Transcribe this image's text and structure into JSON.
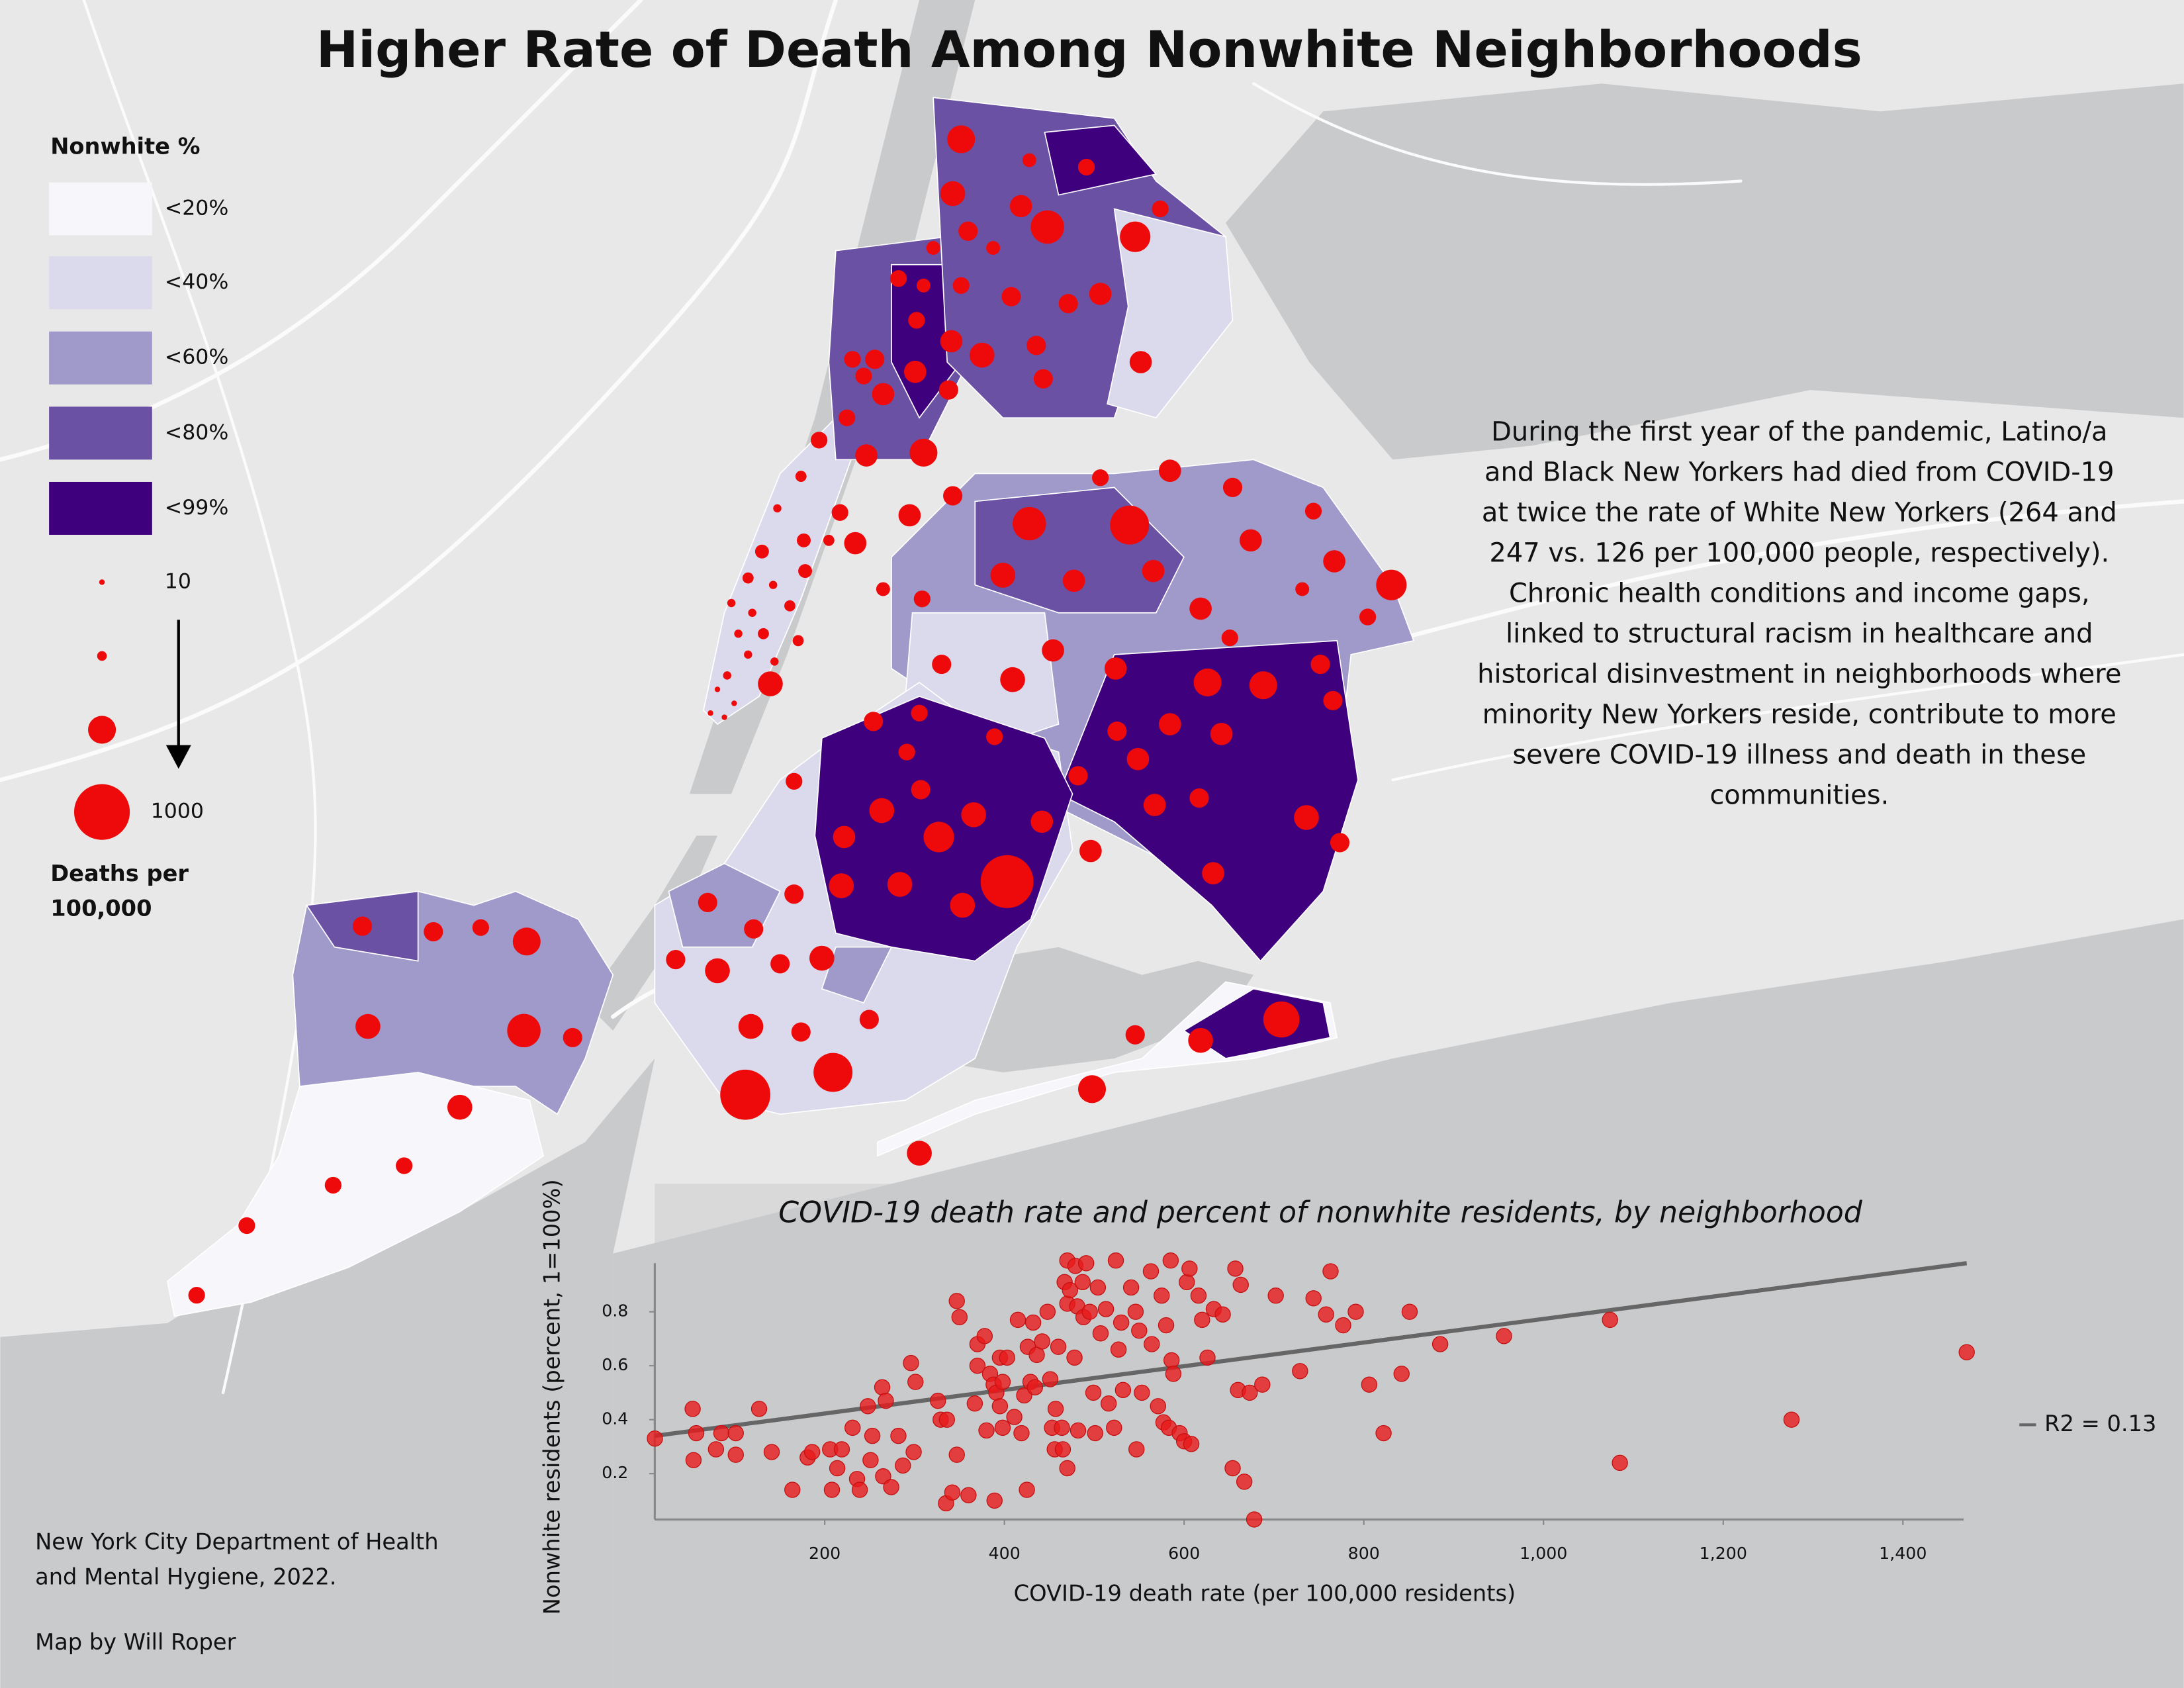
{
  "title": "Higher Rate of Death Among Nonwhite Neighborhoods",
  "legend": {
    "title": "Nonwhite %",
    "classes": [
      {
        "label": "<20%",
        "color": "#f7f6fb"
      },
      {
        "label": "<40%",
        "color": "#dbdaed"
      },
      {
        "label": "<60%",
        "color": "#9f9ac9"
      },
      {
        "label": "<80%",
        "color": "#6b51a4"
      },
      {
        "label": "<99%",
        "color": "#3e007c"
      }
    ],
    "size_values": [
      10,
      30,
      250,
      1000
    ],
    "size_labels": [
      "10",
      null,
      null,
      "1000"
    ],
    "size_title_lines": [
      "Deaths per",
      "100,000"
    ]
  },
  "map_bubbles": {
    "color": "#ee0a0a",
    "values": [
      250,
      62,
      90,
      200,
      160,
      360,
      300,
      90,
      120,
      62,
      62,
      90,
      62,
      90,
      120,
      120,
      160,
      90,
      160,
      200,
      120,
      90,
      120,
      160,
      90,
      160,
      120,
      120,
      160,
      90,
      90,
      250,
      160,
      120,
      90,
      160,
      120,
      90,
      360,
      490,
      160,
      160,
      200,
      160,
      160,
      160,
      160,
      300,
      62,
      90,
      160,
      62,
      90,
      120,
      160,
      200,
      160,
      90,
      250,
      250,
      120,
      200,
      120,
      90,
      90,
      120,
      160,
      160,
      120,
      90,
      90,
      200,
      200,
      120,
      160,
      120,
      160,
      160,
      120,
      200,
      120,
      160,
      300,
      900,
      160,
      200,
      200,
      200,
      160,
      120,
      120,
      120,
      200,
      120,
      200,
      120,
      200,
      120,
      120,
      490,
      810,
      250,
      200,
      120,
      200,
      420,
      120,
      120,
      90,
      250,
      200,
      360,
      120,
      200,
      90,
      90,
      90,
      90,
      40,
      22,
      62,
      40,
      90,
      62,
      62,
      40,
      22,
      40,
      22,
      22,
      40,
      22,
      40,
      22,
      22,
      22,
      10,
      10,
      10,
      10
    ]
  },
  "description": [
    "During the first year of the pandemic, Latino/a",
    "and Black New Yorkers had died from COVID-19",
    "at twice the rate of White New Yorkers (264 and",
    "247 vs. 126 per 100,000 people, respectively).",
    "Chronic health conditions and income gaps,",
    "linked to structural racism in healthcare and",
    "historical disinvestment in neighborhoods where",
    "minority New Yorkers reside, contribute to more",
    "severe COVID-19 illness and death in these",
    "communities."
  ],
  "source_lines": [
    "New York City Department of Health",
    "and Mental Hygiene, 2022."
  ],
  "credit": "Map by Will Roper",
  "chart_data": {
    "type": "scatter",
    "title": "COVID-19 death rate and percent of nonwhite residents, by neighborhood",
    "x_label": "COVID-19 death rate (per 100,000 residents)",
    "y_label": "Nonwhite residents (percent, 1=100%)",
    "color": "#e8191c",
    "x": [
      11,
      53,
      57,
      54,
      79,
      85,
      101,
      101,
      127,
      141,
      164,
      181,
      186,
      206,
      208,
      214,
      219,
      231,
      236,
      239,
      248,
      251,
      253,
      264,
      265,
      268,
      274,
      282,
      287,
      296,
      301,
      299,
      326,
      329,
      336,
      335,
      342,
      347,
      347,
      350,
      360,
      367,
      370,
      370,
      378,
      380,
      384,
      388,
      389,
      391,
      395,
      395,
      398,
      398,
      403,
      411,
      415,
      419,
      422,
      425,
      426,
      429,
      432,
      434,
      436,
      442,
      448,
      451,
      453,
      456,
      457,
      460,
      464,
      465,
      467,
      470,
      470,
      470,
      473,
      478,
      479,
      481,
      482,
      487,
      488,
      491,
      495,
      499,
      501,
      504,
      507,
      513,
      516,
      522,
      524,
      527,
      530,
      532,
      541,
      546,
      547,
      550,
      553,
      563,
      564,
      571,
      575,
      577,
      580,
      583,
      585,
      586,
      588,
      595,
      600,
      603,
      606,
      608,
      616,
      620,
      626,
      633,
      643,
      654,
      657,
      660,
      663,
      667,
      673,
      678,
      687,
      702,
      729,
      744,
      758,
      763,
      777,
      791,
      806,
      822,
      842,
      851,
      885,
      956,
      1074,
      1085,
      1276,
      1471
    ],
    "values": [
      0.33,
      0.44,
      0.35,
      0.25,
      0.29,
      0.35,
      0.35,
      0.27,
      0.44,
      0.28,
      0.14,
      0.26,
      0.28,
      0.29,
      0.14,
      0.22,
      0.29,
      0.37,
      0.18,
      0.14,
      0.45,
      0.25,
      0.34,
      0.52,
      0.19,
      0.47,
      0.15,
      0.34,
      0.23,
      0.61,
      0.54,
      0.28,
      0.47,
      0.4,
      0.4,
      0.09,
      0.13,
      0.84,
      0.27,
      0.78,
      0.12,
      0.46,
      0.68,
      0.6,
      0.71,
      0.36,
      0.57,
      0.53,
      0.1,
      0.5,
      0.63,
      0.45,
      0.54,
      0.37,
      0.63,
      0.41,
      0.77,
      0.35,
      0.49,
      0.14,
      0.67,
      0.54,
      0.76,
      0.52,
      0.64,
      0.69,
      0.8,
      0.55,
      0.37,
      0.29,
      0.44,
      0.67,
      0.37,
      0.29,
      0.91,
      0.99,
      0.83,
      0.22,
      0.88,
      0.63,
      0.97,
      0.82,
      0.36,
      0.91,
      0.78,
      0.98,
      0.8,
      0.5,
      0.35,
      0.89,
      0.72,
      0.81,
      0.46,
      0.37,
      0.99,
      0.66,
      0.76,
      0.51,
      0.89,
      0.8,
      0.29,
      0.73,
      0.5,
      0.95,
      0.68,
      0.45,
      0.86,
      0.39,
      0.75,
      0.37,
      0.99,
      0.62,
      0.57,
      0.35,
      0.32,
      0.91,
      0.96,
      0.31,
      0.86,
      0.77,
      0.63,
      0.81,
      0.79,
      0.22,
      0.96,
      0.51,
      0.9,
      0.17,
      0.5,
      0.03,
      0.53,
      0.86,
      0.58,
      0.85,
      0.79,
      0.95,
      0.75,
      0.8,
      0.53,
      0.35,
      0.57,
      0.8,
      0.68,
      0.71,
      0.77,
      0.24,
      0.4,
      0.65
    ],
    "trendline": {
      "label": "R2 = 0.13",
      "color": "#666666",
      "x": [
        0,
        1471
      ],
      "y": [
        0.34,
        0.98
      ]
    },
    "xlim": [
      0,
      1480
    ],
    "ylim": [
      0.03,
      0.98
    ],
    "xticks": [
      200,
      400,
      600,
      800,
      {
        "value": 1000,
        "label": "1,000"
      },
      {
        "value": 1200,
        "label": "1,200"
      },
      {
        "value": 1400,
        "label": "1,400"
      }
    ],
    "yticks": [
      0.2,
      0.4,
      0.6,
      0.8
    ],
    "grid": false
  }
}
